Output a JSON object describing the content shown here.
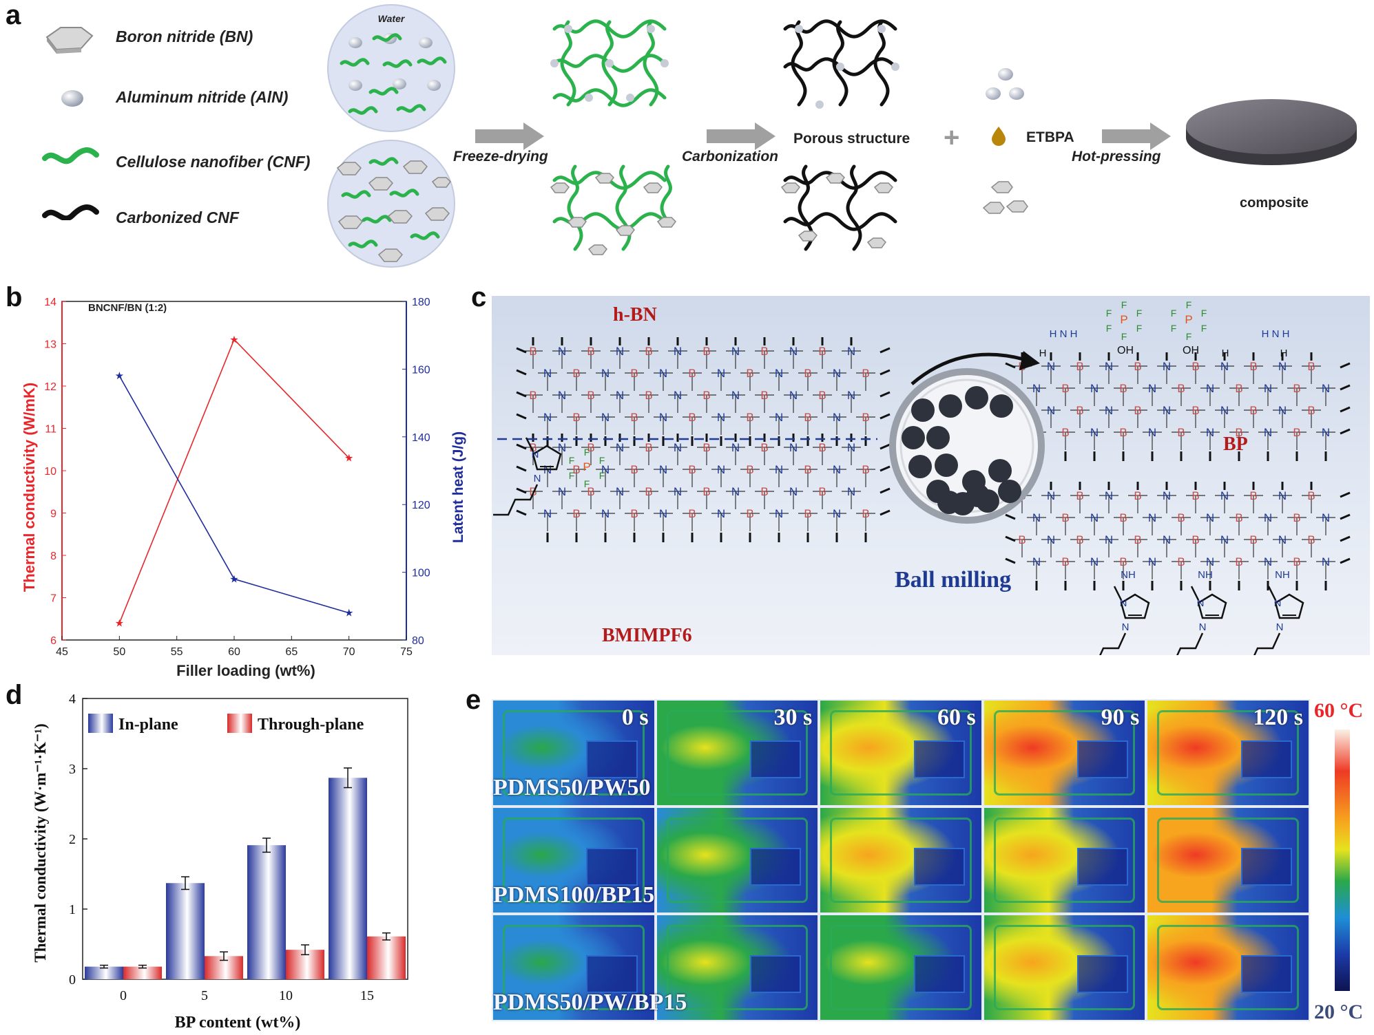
{
  "panel_labels": {
    "a": "a",
    "b": "b",
    "c": "c",
    "d": "d",
    "e": "e"
  },
  "panel_a": {
    "legend": [
      {
        "label": "Boron nitride (BN)",
        "icon": "hexagon-flake-icon"
      },
      {
        "label": "Aluminum nitride (AlN)",
        "icon": "sphere-icon"
      },
      {
        "label": "Cellulose nanofiber (CNF)",
        "icon": "green-fiber-icon"
      },
      {
        "label": "Carbonized CNF",
        "icon": "black-fiber-icon"
      }
    ],
    "water_label": "Water",
    "steps": {
      "freeze": "Freeze-drying",
      "carbon": "Carbonization",
      "hot": "Hot-pressing"
    },
    "porous": "Porous structure",
    "plus": "+",
    "etbpa": "ETBPA",
    "composite": "composite",
    "colors": {
      "cnf": "#2bb24c",
      "carbon": "#111111",
      "arrow": "#9a9a9a",
      "circle": "#dde3f2"
    }
  },
  "chart_b": {
    "type": "line",
    "annotation": "BNCNF/BN (1:2)",
    "xlabel": "Filler loading (wt%)",
    "ylabel_left": "Thermal conductivity (W/mK)",
    "ylabel_right": "Latent heat (J/g)",
    "x_ticks": [
      "45",
      "50",
      "55",
      "60",
      "65",
      "70",
      "75"
    ],
    "y_left_ticks": [
      "6",
      "7",
      "8",
      "9",
      "10",
      "11",
      "12",
      "13",
      "14"
    ],
    "y_right_ticks": [
      "80",
      "100",
      "120",
      "140",
      "160",
      "180"
    ],
    "xlim": [
      45,
      75
    ],
    "ylim_left": [
      6,
      14
    ],
    "ylim_right": [
      80,
      180
    ],
    "series": [
      {
        "axis": "left",
        "color": "#e8262a",
        "x": [
          50,
          60,
          70
        ],
        "y": [
          6.4,
          13.1,
          10.3
        ]
      },
      {
        "axis": "right",
        "color": "#1f2d9c",
        "x": [
          50,
          60,
          70
        ],
        "y": [
          158,
          98,
          88
        ]
      }
    ]
  },
  "panel_c": {
    "hbn": "h-BN",
    "bp": "BP",
    "bmimpf6": "BMIMPF6",
    "ball_milling": "Ball milling",
    "atoms": {
      "B": "B",
      "N": "N",
      "H": "H",
      "F": "F",
      "P": "P",
      "OH": "OH",
      "NH": "NH",
      "Nplus": "N+"
    },
    "colors": {
      "B": "#c0504d",
      "N": "#1f3a93",
      "F": "#2e8b2e",
      "P": "#e0551b",
      "title": "#b31b1b"
    }
  },
  "chart_d": {
    "type": "bar",
    "xlabel": "BP content (wt%)",
    "ylabel": "Thermal conductivity (W·m⁻¹·K⁻¹)",
    "categories": [
      "0",
      "5",
      "10",
      "15"
    ],
    "y_ticks": [
      "0",
      "1",
      "2",
      "3",
      "4"
    ],
    "ylim": [
      0,
      4
    ],
    "series": [
      {
        "name": "In-plane",
        "color": "#2a3a9c",
        "values": [
          0.18,
          1.37,
          1.91,
          2.87
        ],
        "errors": [
          0.02,
          0.09,
          0.1,
          0.14
        ]
      },
      {
        "name": "Through-plane",
        "color": "#d92a2a",
        "values": [
          0.18,
          0.33,
          0.42,
          0.61
        ],
        "errors": [
          0.02,
          0.06,
          0.07,
          0.05
        ]
      }
    ]
  },
  "panel_e": {
    "times": [
      "0 s",
      "30 s",
      "60 s",
      "90 s",
      "120 s"
    ],
    "rows": [
      "PDMS50/PW50",
      "PDMS100/BP15",
      "PDMS50/PW/BP15"
    ],
    "colorbar": {
      "max": "60 °C",
      "min": "20 °C",
      "max_color": "#e8262a",
      "min_color": "#3a4a7a"
    },
    "heat_levels": [
      [
        0.35,
        0.55,
        0.72,
        0.78,
        0.88
      ],
      [
        0.3,
        0.5,
        0.62,
        0.7,
        0.9
      ],
      [
        0.3,
        0.48,
        0.6,
        0.68,
        0.8
      ]
    ]
  }
}
